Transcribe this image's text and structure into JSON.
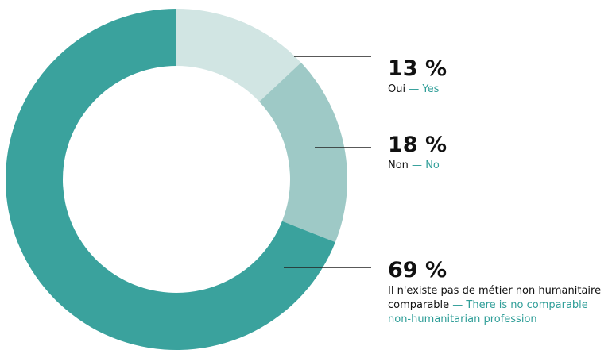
{
  "chart_data": {
    "type": "pie",
    "variant": "donut",
    "start": "top",
    "direction": "clockwise",
    "slices": [
      {
        "value": 13,
        "value_label": "13 %",
        "label_fr": "Oui",
        "separator": " — ",
        "label_en": "Yes",
        "color": "#d1e5e3"
      },
      {
        "value": 18,
        "value_label": "18 %",
        "label_fr": "Non",
        "separator": " — ",
        "label_en": "No",
        "color": "#9ec9c6"
      },
      {
        "value": 69,
        "value_label": "69 %",
        "label_fr": "Il n'existe pas de métier non humanitaire comparable",
        "separator": " — ",
        "label_en": "There is no comparable non-humanitarian profession",
        "color": "#3aa29d"
      }
    ]
  },
  "colors": {
    "text": "#111111",
    "english_label": "#2f9e98",
    "leader_line": "#222222"
  }
}
